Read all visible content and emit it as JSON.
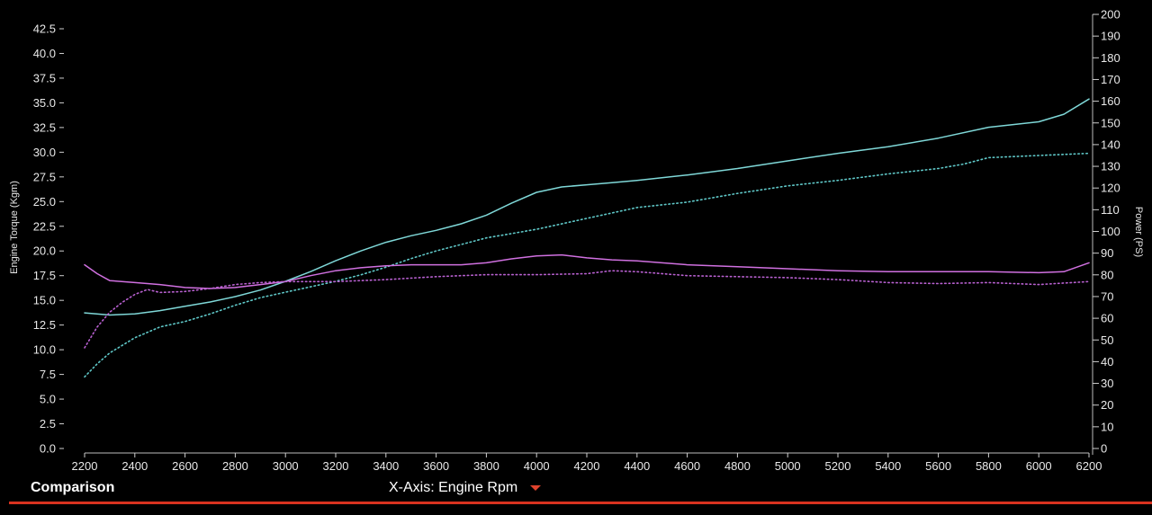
{
  "chart_data": {
    "type": "line",
    "title": "",
    "xlabel": "",
    "ylabel_left": "Engine Torque (Kgm)",
    "ylabel_right": "Power (PS)",
    "xlim": [
      2200,
      6200
    ],
    "ylim_left": [
      0,
      42.5
    ],
    "ylim_right": [
      0,
      200
    ],
    "x_ticks": [
      2200,
      2400,
      2600,
      2800,
      3000,
      3200,
      3400,
      3600,
      3800,
      4000,
      4200,
      4400,
      4600,
      4800,
      5000,
      5200,
      5400,
      5600,
      5800,
      6000,
      6200
    ],
    "y_left_ticks": [
      "0.0",
      "2.5",
      "5.0",
      "7.5",
      "10.0",
      "12.5",
      "15.0",
      "17.5",
      "20.0",
      "22.5",
      "25.0",
      "27.5",
      "30.0",
      "32.5",
      "35.0",
      "37.5",
      "40.0",
      "42.5"
    ],
    "y_right_ticks": [
      0,
      10,
      20,
      30,
      40,
      50,
      60,
      70,
      80,
      90,
      100,
      110,
      120,
      130,
      140,
      150,
      160,
      170,
      180,
      190,
      200
    ],
    "grid": false,
    "series": [
      {
        "axis": "right",
        "color": "#7fd8d8",
        "style": "solid",
        "x": [
          2200,
          2300,
          2400,
          2500,
          2600,
          2700,
          2800,
          2900,
          3000,
          3100,
          3200,
          3300,
          3400,
          3500,
          3600,
          3700,
          3800,
          3900,
          4000,
          4100,
          4200,
          4300,
          4400,
          4600,
          4800,
          5000,
          5200,
          5400,
          5600,
          5800,
          6000,
          6100,
          6200
        ],
        "y": [
          62.5,
          61.5,
          62,
          63.5,
          65.5,
          67.5,
          70,
          73,
          77,
          81.5,
          86.5,
          91,
          95,
          98,
          100.5,
          103.5,
          107.5,
          113,
          118,
          120.5,
          121.5,
          122.5,
          123.5,
          126,
          129,
          132.5,
          136,
          139,
          143,
          148,
          150.5,
          154,
          161
        ]
      },
      {
        "axis": "right",
        "color": "#5fc8c8",
        "style": "dotted",
        "x": [
          2200,
          2250,
          2300,
          2400,
          2500,
          2600,
          2700,
          2800,
          2900,
          3000,
          3100,
          3200,
          3300,
          3400,
          3500,
          3600,
          3700,
          3800,
          4000,
          4200,
          4400,
          4600,
          4800,
          5000,
          5200,
          5400,
          5600,
          5700,
          5800,
          6000,
          6200
        ],
        "y": [
          33,
          39,
          44,
          51,
          56,
          58.5,
          62,
          66,
          69.5,
          72,
          74.5,
          77,
          80,
          83.5,
          87.5,
          91,
          94,
          97,
          101,
          106,
          111,
          113.5,
          117.5,
          121,
          123.5,
          126.5,
          129,
          131,
          134,
          135,
          136
        ]
      },
      {
        "axis": "left",
        "color": "#d070e0",
        "style": "solid",
        "x": [
          2200,
          2250,
          2300,
          2400,
          2500,
          2600,
          2700,
          2800,
          2900,
          3000,
          3100,
          3200,
          3300,
          3400,
          3500,
          3600,
          3700,
          3800,
          3900,
          4000,
          4100,
          4200,
          4300,
          4400,
          4600,
          4800,
          5000,
          5200,
          5400,
          5600,
          5800,
          6000,
          6100,
          6200
        ],
        "y": [
          18.6,
          17.7,
          17.0,
          16.8,
          16.6,
          16.3,
          16.2,
          16.3,
          16.6,
          16.9,
          17.5,
          18.0,
          18.3,
          18.5,
          18.6,
          18.6,
          18.6,
          18.8,
          19.2,
          19.5,
          19.6,
          19.3,
          19.1,
          19.0,
          18.6,
          18.4,
          18.2,
          18.0,
          17.9,
          17.9,
          17.9,
          17.8,
          17.9,
          18.8
        ]
      },
      {
        "axis": "left",
        "color": "#b860d0",
        "style": "dotted",
        "x": [
          2200,
          2250,
          2300,
          2350,
          2400,
          2450,
          2500,
          2600,
          2700,
          2800,
          2900,
          3000,
          3200,
          3400,
          3600,
          3800,
          4000,
          4200,
          4300,
          4400,
          4600,
          4800,
          5000,
          5200,
          5400,
          5600,
          5800,
          6000,
          6200
        ],
        "y": [
          10.2,
          12.3,
          13.8,
          14.8,
          15.6,
          16.1,
          15.8,
          15.9,
          16.2,
          16.6,
          16.8,
          16.9,
          16.9,
          17.1,
          17.4,
          17.6,
          17.6,
          17.7,
          18.0,
          17.9,
          17.5,
          17.4,
          17.3,
          17.1,
          16.8,
          16.7,
          16.8,
          16.6,
          16.9
        ]
      }
    ]
  },
  "footer": {
    "comparison_label": "Comparison",
    "xaxis_selector": "X-Axis: Engine Rpm"
  }
}
